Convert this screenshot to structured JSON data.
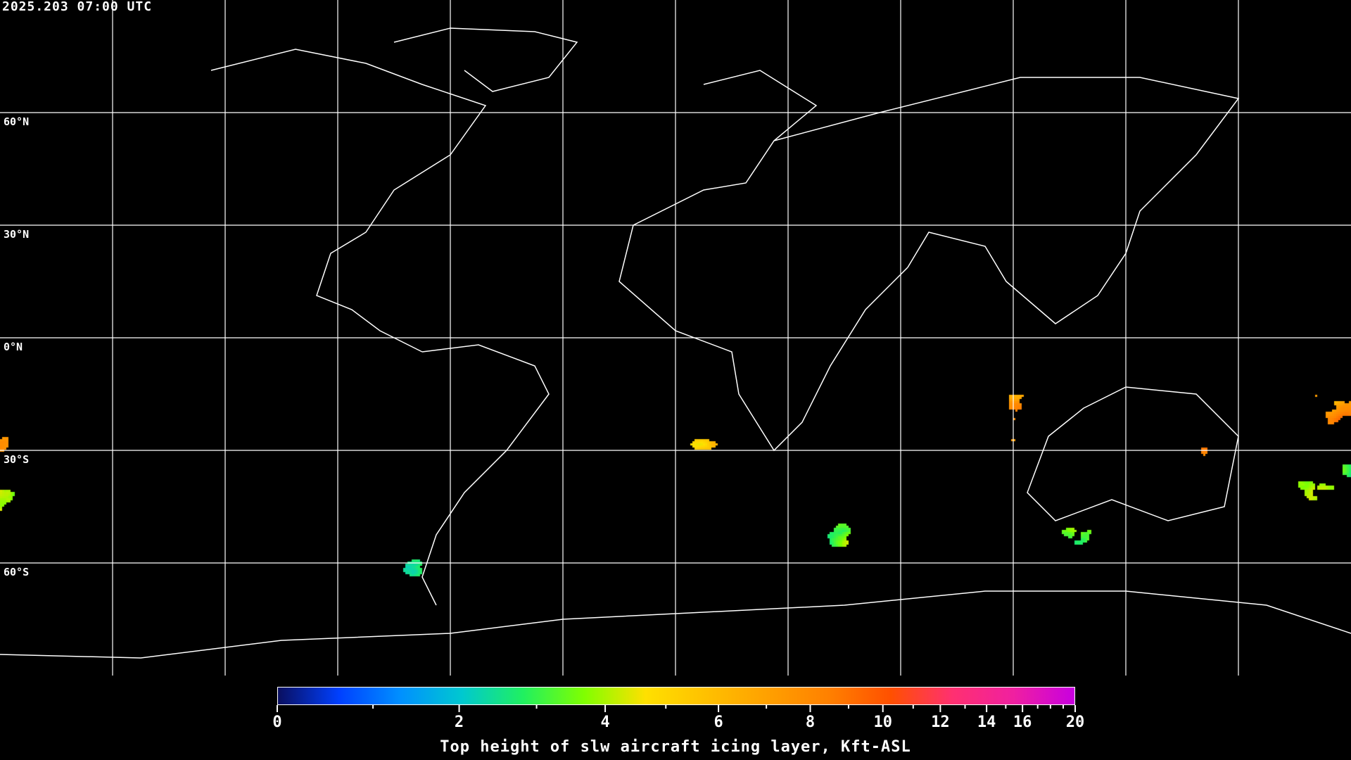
{
  "header": {
    "timestamp": "2025.203 07:00 UTC"
  },
  "map": {
    "projection": "equirectangular",
    "background_color": "#000000",
    "grid_color": "#ffffff",
    "coastline_color": "#ffffff",
    "grid_lat_step_deg": 30,
    "grid_lon_step_deg": 30,
    "lat_labels": [
      "60°N",
      "30°N",
      "0°N",
      "30°S",
      "60°S"
    ]
  },
  "colorbar": {
    "title": "Top height of slw aircraft icing layer, Kft-ASL",
    "range": [
      0,
      20
    ],
    "tick_labels": [
      "0",
      "2",
      "4",
      "6",
      "8",
      "10",
      "12",
      "14",
      "16",
      "20"
    ],
    "minor_ticks": [
      1,
      3,
      5,
      7,
      9,
      11,
      13,
      15,
      17,
      18,
      19
    ],
    "colors": [
      "#0a0f60",
      "#0040ff",
      "#0090ff",
      "#00c8d0",
      "#20f060",
      "#80ff00",
      "#ffe000",
      "#ffc000",
      "#ffa000",
      "#ff8000",
      "#ff5000",
      "#ff3070",
      "#f020a0",
      "#c800e0"
    ]
  }
}
